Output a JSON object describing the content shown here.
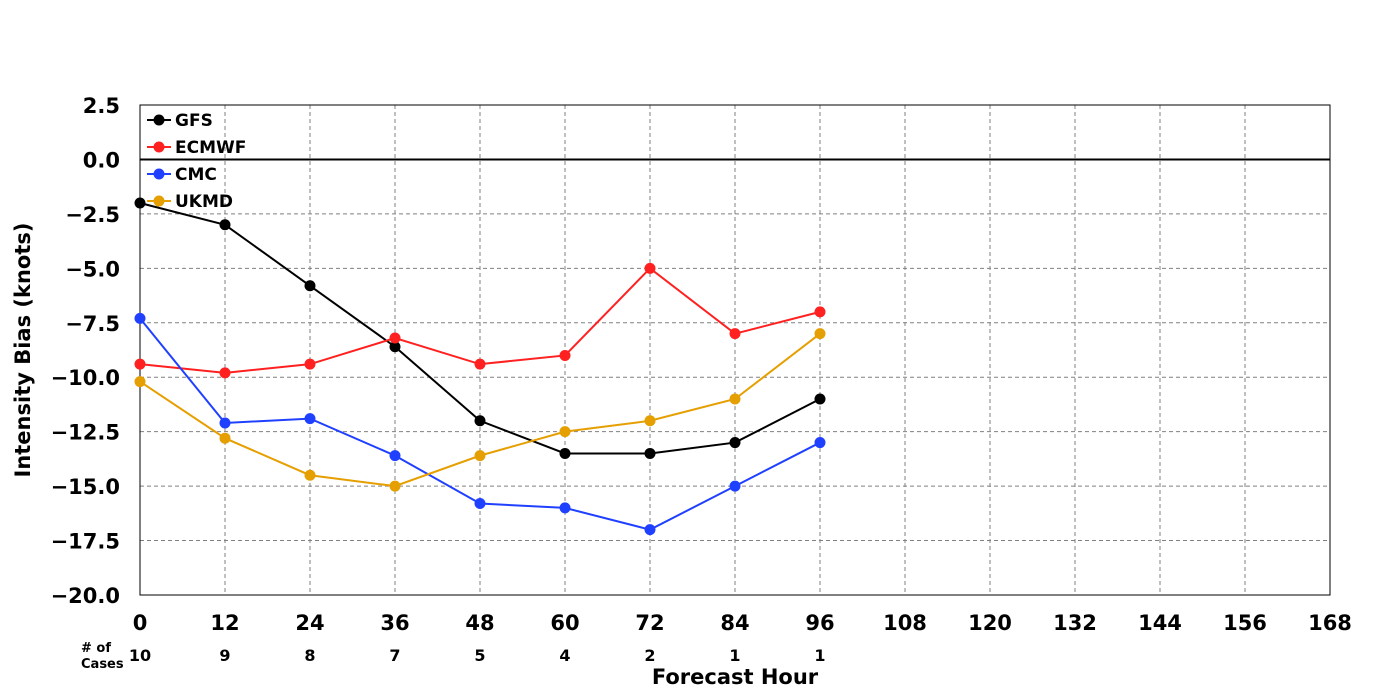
{
  "chart_data": {
    "type": "line",
    "title": "",
    "xlabel": "Forecast Hour",
    "ylabel": "Intensity Bias (knots)",
    "xlim": [
      0,
      168
    ],
    "ylim": [
      -20.0,
      2.5
    ],
    "x_ticks": [
      0,
      12,
      24,
      36,
      48,
      60,
      72,
      84,
      96,
      108,
      120,
      132,
      144,
      156,
      168
    ],
    "y_ticks": [
      "2.5",
      "0.0",
      "−2.5",
      "−5.0",
      "−7.5",
      "−10.0",
      "−12.5",
      "−15.0",
      "−17.5",
      "−20.0"
    ],
    "y_tick_values": [
      2.5,
      0,
      -2.5,
      -5,
      -7.5,
      -10,
      -12.5,
      -15,
      -17.5,
      -20
    ],
    "grid": true,
    "legend_position": "top-left",
    "cases_label_1": "# of",
    "cases_label_2": "Cases",
    "cases": [
      {
        "x": 0,
        "n": "10"
      },
      {
        "x": 12,
        "n": "9"
      },
      {
        "x": 24,
        "n": "8"
      },
      {
        "x": 36,
        "n": "7"
      },
      {
        "x": 48,
        "n": "5"
      },
      {
        "x": 60,
        "n": "4"
      },
      {
        "x": 72,
        "n": "2"
      },
      {
        "x": 84,
        "n": "1"
      },
      {
        "x": 96,
        "n": "1"
      }
    ],
    "x": [
      0,
      12,
      24,
      36,
      48,
      60,
      72,
      84,
      96
    ],
    "series": [
      {
        "name": "GFS",
        "color": "#000000",
        "values": [
          -2.0,
          -3.0,
          -5.8,
          -8.6,
          -12.0,
          -13.5,
          -13.5,
          -13.0,
          -11.0
        ]
      },
      {
        "name": "ECMWF",
        "color": "#ff2020",
        "values": [
          -9.4,
          -9.8,
          -9.4,
          -8.2,
          -9.4,
          -9.0,
          -5.0,
          -8.0,
          -7.0
        ]
      },
      {
        "name": "CMC",
        "color": "#2040ff",
        "values": [
          -7.3,
          -12.1,
          -11.9,
          -13.6,
          -15.8,
          -16.0,
          -17.0,
          -15.0,
          -13.0
        ]
      },
      {
        "name": "UKMD",
        "color": "#e69f00",
        "values": [
          -10.2,
          -12.8,
          -14.5,
          -15.0,
          -13.6,
          -12.5,
          -12.0,
          -11.0,
          -8.0
        ]
      }
    ]
  }
}
